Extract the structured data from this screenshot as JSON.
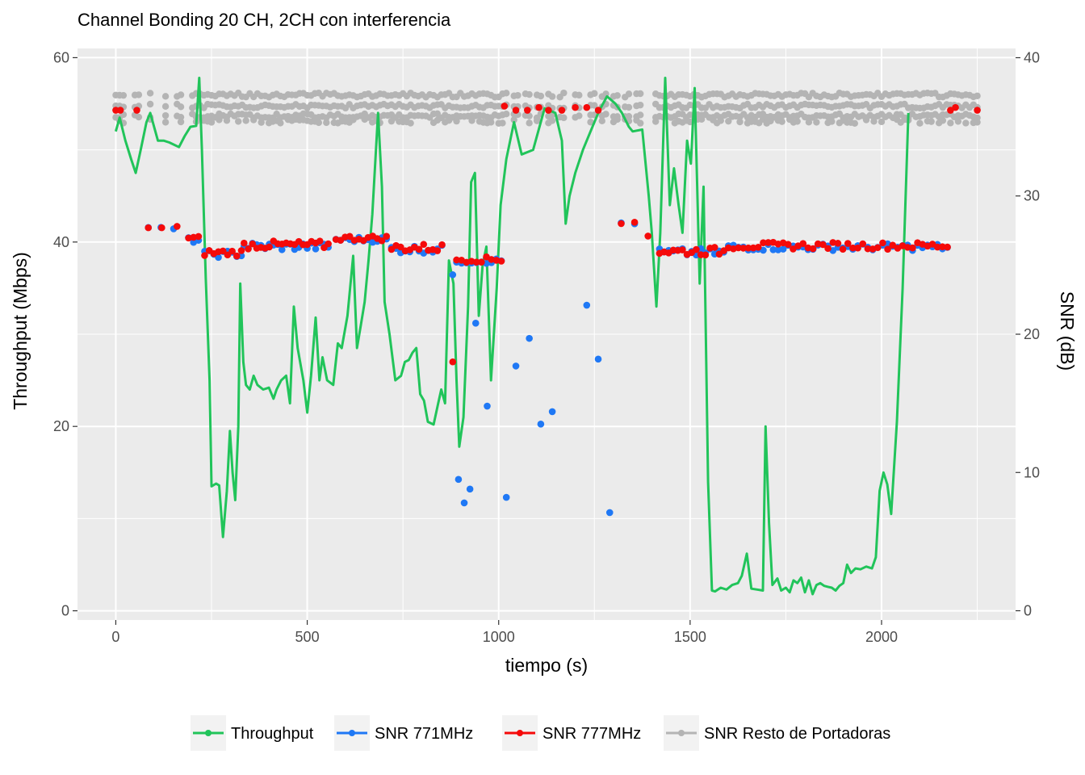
{
  "chart_data": {
    "type": "line",
    "title": "Channel Bonding 20 CH, 2CH con interferencia",
    "xlabel": "tiempo (s)",
    "ylabel": "Throughput (Mbps)",
    "y2label": "SNR (dB)",
    "xlim": [
      -100,
      2350
    ],
    "ylim": [
      -1,
      61
    ],
    "y2lim": [
      -0.67,
      40.67
    ],
    "x_ticks": [
      0,
      500,
      1000,
      1500,
      2000
    ],
    "y_ticks": [
      0,
      20,
      40,
      60
    ],
    "y2_ticks": [
      0,
      10,
      20,
      30,
      40
    ],
    "x_tick_labels": [
      "0",
      "500",
      "1000",
      "1500",
      "2000"
    ],
    "y_tick_labels": [
      "0",
      "20",
      "40",
      "60"
    ],
    "y2_tick_labels": [
      "0",
      "10",
      "20",
      "30",
      "40"
    ],
    "grid": true,
    "legend_position": "bottom",
    "colors": {
      "panel": "#ebebeb",
      "grid": "#ffffff",
      "throughput": "#21c45a",
      "snr771": "#1f78f5",
      "snr777": "#f50a0a",
      "snr_rest": "#b4b4b4"
    },
    "series": [
      {
        "name": "Throughput",
        "axis": "left",
        "kind": "line",
        "points": [
          [
            0,
            52
          ],
          [
            10,
            53.5
          ],
          [
            25,
            51
          ],
          [
            40,
            49
          ],
          [
            52,
            47.5
          ],
          [
            65,
            50
          ],
          [
            80,
            53
          ],
          [
            90,
            54
          ],
          [
            110,
            51
          ],
          [
            125,
            51
          ],
          [
            140,
            50.8
          ],
          [
            165,
            50.3
          ],
          [
            180,
            51.5
          ],
          [
            195,
            52.5
          ],
          [
            210,
            52.6
          ],
          [
            218,
            57.8
          ],
          [
            225,
            50
          ],
          [
            235,
            36
          ],
          [
            245,
            25
          ],
          [
            250,
            13.5
          ],
          [
            262,
            13.8
          ],
          [
            270,
            13.6
          ],
          [
            280,
            8
          ],
          [
            290,
            13
          ],
          [
            298,
            19.5
          ],
          [
            305,
            15
          ],
          [
            312,
            12
          ],
          [
            320,
            20
          ],
          [
            325,
            35.5
          ],
          [
            333,
            27
          ],
          [
            340,
            24.5
          ],
          [
            350,
            24
          ],
          [
            360,
            25.5
          ],
          [
            370,
            24.5
          ],
          [
            385,
            24
          ],
          [
            400,
            24.2
          ],
          [
            412,
            23
          ],
          [
            420,
            24
          ],
          [
            432,
            25
          ],
          [
            445,
            25.5
          ],
          [
            455,
            22.5
          ],
          [
            465,
            33
          ],
          [
            475,
            28.5
          ],
          [
            490,
            25
          ],
          [
            500,
            21.5
          ],
          [
            510,
            25.5
          ],
          [
            522,
            31.8
          ],
          [
            532,
            25
          ],
          [
            540,
            27.5
          ],
          [
            552,
            25
          ],
          [
            568,
            24.5
          ],
          [
            580,
            29
          ],
          [
            590,
            28.5
          ],
          [
            605,
            32
          ],
          [
            620,
            38.5
          ],
          [
            630,
            28.5
          ],
          [
            640,
            31
          ],
          [
            650,
            33.5
          ],
          [
            660,
            38
          ],
          [
            670,
            43
          ],
          [
            685,
            54
          ],
          [
            695,
            46
          ],
          [
            702,
            33.5
          ],
          [
            715,
            30
          ],
          [
            730,
            25
          ],
          [
            745,
            25.5
          ],
          [
            755,
            27
          ],
          [
            765,
            27.2
          ],
          [
            775,
            28
          ],
          [
            785,
            28.5
          ],
          [
            795,
            23.5
          ],
          [
            805,
            22.8
          ],
          [
            815,
            20.5
          ],
          [
            830,
            20.2
          ],
          [
            842,
            22.5
          ],
          [
            850,
            24
          ],
          [
            860,
            22.5
          ],
          [
            870,
            38
          ],
          [
            882,
            35.5
          ],
          [
            890,
            25
          ],
          [
            897,
            17.8
          ],
          [
            908,
            21
          ],
          [
            920,
            33
          ],
          [
            928,
            46.5
          ],
          [
            938,
            47.5
          ],
          [
            948,
            32
          ],
          [
            958,
            37.5
          ],
          [
            968,
            39.5
          ],
          [
            980,
            25
          ],
          [
            995,
            35
          ],
          [
            1005,
            44
          ],
          [
            1020,
            49
          ],
          [
            1040,
            53
          ],
          [
            1060,
            49.5
          ],
          [
            1090,
            50
          ],
          [
            1120,
            54.5
          ],
          [
            1148,
            54
          ],
          [
            1165,
            51
          ],
          [
            1175,
            42
          ],
          [
            1185,
            45
          ],
          [
            1200,
            47.5
          ],
          [
            1220,
            50
          ],
          [
            1240,
            52
          ],
          [
            1262,
            54.2
          ],
          [
            1283,
            55.8
          ],
          [
            1305,
            55
          ],
          [
            1322,
            54
          ],
          [
            1340,
            52.5
          ],
          [
            1350,
            52
          ],
          [
            1375,
            52.2
          ],
          [
            1392,
            45
          ],
          [
            1400,
            41
          ],
          [
            1412,
            33
          ],
          [
            1422,
            41
          ],
          [
            1435,
            57.8
          ],
          [
            1447,
            44
          ],
          [
            1458,
            48
          ],
          [
            1470,
            44
          ],
          [
            1480,
            41
          ],
          [
            1492,
            51
          ],
          [
            1502,
            48.5
          ],
          [
            1512,
            56.7
          ],
          [
            1525,
            35.5
          ],
          [
            1535,
            46
          ],
          [
            1547,
            14
          ],
          [
            1557,
            2.2
          ],
          [
            1565,
            2.1
          ],
          [
            1580,
            2.5
          ],
          [
            1595,
            2.3
          ],
          [
            1610,
            2.8
          ],
          [
            1625,
            3
          ],
          [
            1635,
            3.8
          ],
          [
            1648,
            6.2
          ],
          [
            1660,
            2.4
          ],
          [
            1675,
            2.3
          ],
          [
            1690,
            2.2
          ],
          [
            1697,
            20
          ],
          [
            1706,
            9.5
          ],
          [
            1715,
            2.8
          ],
          [
            1728,
            3.5
          ],
          [
            1738,
            2.2
          ],
          [
            1750,
            2.5
          ],
          [
            1760,
            2
          ],
          [
            1770,
            3.3
          ],
          [
            1780,
            3
          ],
          [
            1790,
            3.6
          ],
          [
            1800,
            2
          ],
          [
            1810,
            3.3
          ],
          [
            1820,
            1.8
          ],
          [
            1830,
            2.8
          ],
          [
            1840,
            3
          ],
          [
            1850,
            2.7
          ],
          [
            1860,
            2.6
          ],
          [
            1870,
            2.5
          ],
          [
            1880,
            2.2
          ],
          [
            1890,
            2.7
          ],
          [
            1900,
            3
          ],
          [
            1910,
            5
          ],
          [
            1920,
            4.1
          ],
          [
            1932,
            4.6
          ],
          [
            1945,
            4.5
          ],
          [
            1960,
            4.8
          ],
          [
            1975,
            4.6
          ],
          [
            1985,
            5.8
          ],
          [
            1995,
            13
          ],
          [
            2005,
            15
          ],
          [
            2015,
            13.7
          ],
          [
            2025,
            10.5
          ],
          [
            2040,
            20.5
          ],
          [
            2055,
            35
          ],
          [
            2070,
            54
          ]
        ]
      },
      {
        "name": "SNR 771MHz",
        "axis": "right",
        "kind": "points",
        "points": [
          [
            880,
            24.3
          ],
          [
            895,
            9.5
          ],
          [
            910,
            7.8
          ],
          [
            925,
            8.8
          ],
          [
            940,
            20.8
          ],
          [
            970,
            14.8
          ],
          [
            1020,
            8.2
          ],
          [
            1045,
            17.7
          ],
          [
            1080,
            19.7
          ],
          [
            1110,
            13.5
          ],
          [
            1140,
            14.4
          ],
          [
            1230,
            22.1
          ],
          [
            1260,
            18.2
          ],
          [
            1290,
            7.1
          ]
        ],
        "runs": [
          {
            "start": 85,
            "end": 160,
            "step": 33,
            "value": 27.6,
            "jitter": 0.2
          },
          {
            "start": 190,
            "end": 225,
            "step": 13,
            "value": 26.8,
            "jitter": 0.2
          },
          {
            "start": 232,
            "end": 330,
            "step": 12,
            "value": 25.8,
            "jitter": 0.25
          },
          {
            "start": 335,
            "end": 565,
            "step": 11,
            "value": 26.35,
            "jitter": 0.3
          },
          {
            "start": 575,
            "end": 715,
            "step": 12,
            "value": 26.85,
            "jitter": 0.2
          },
          {
            "start": 720,
            "end": 860,
            "step": 12,
            "value": 26.15,
            "jitter": 0.3
          },
          {
            "start": 890,
            "end": 1010,
            "step": 13,
            "value": 25.3,
            "jitter": 0.2
          },
          {
            "start": 1320,
            "end": 1360,
            "step": 35,
            "value": 28.05,
            "jitter": 0.1
          },
          {
            "start": 1420,
            "end": 1590,
            "step": 12,
            "value": 25.9,
            "jitter": 0.3
          },
          {
            "start": 1600,
            "end": 2180,
            "step": 13,
            "value": 26.3,
            "jitter": 0.25
          }
        ]
      },
      {
        "name": "SNR 777MHz",
        "axis": "right",
        "kind": "points",
        "points": [
          [
            0,
            36.2
          ],
          [
            12,
            36.2
          ],
          [
            55,
            36.2
          ],
          [
            85,
            27.7
          ],
          [
            120,
            27.7
          ],
          [
            160,
            27.8
          ],
          [
            880,
            18
          ],
          [
            1015,
            36.5
          ],
          [
            1045,
            36.2
          ],
          [
            1075,
            36.2
          ],
          [
            1105,
            36.4
          ],
          [
            1130,
            36.2
          ],
          [
            1165,
            36.2
          ],
          [
            1200,
            36.4
          ],
          [
            1230,
            36.4
          ],
          [
            1260,
            36.2
          ],
          [
            1320,
            28
          ],
          [
            1355,
            28.1
          ],
          [
            1390,
            27.1
          ],
          [
            2180,
            36.2
          ],
          [
            2193,
            36.4
          ],
          [
            2250,
            36.2
          ]
        ],
        "runs": [
          {
            "start": 190,
            "end": 225,
            "step": 13,
            "value": 26.9,
            "jitter": 0.2
          },
          {
            "start": 232,
            "end": 330,
            "step": 12,
            "value": 25.9,
            "jitter": 0.25
          },
          {
            "start": 335,
            "end": 565,
            "step": 11,
            "value": 26.45,
            "jitter": 0.3
          },
          {
            "start": 575,
            "end": 715,
            "step": 12,
            "value": 26.95,
            "jitter": 0.2
          },
          {
            "start": 720,
            "end": 860,
            "step": 12,
            "value": 26.25,
            "jitter": 0.3
          },
          {
            "start": 890,
            "end": 1010,
            "step": 13,
            "value": 25.4,
            "jitter": 0.2
          },
          {
            "start": 1420,
            "end": 1590,
            "step": 12,
            "value": 26.0,
            "jitter": 0.3
          },
          {
            "start": 1600,
            "end": 2180,
            "step": 13,
            "value": 26.4,
            "jitter": 0.25
          }
        ]
      },
      {
        "name": "SNR Resto de Portadoras",
        "axis": "right",
        "kind": "points",
        "bands": [
          37.3,
          36.5,
          35.8,
          35.4
        ],
        "x_gaps": [
          [
            25,
            50
          ],
          [
            60,
            85
          ],
          [
            95,
            125
          ],
          [
            135,
            160
          ],
          [
            170,
            200
          ],
          [
            1020,
            1040
          ],
          [
            1050,
            1070
          ],
          [
            1080,
            1100
          ],
          [
            1110,
            1130
          ],
          [
            1140,
            1160
          ],
          [
            1170,
            1200
          ],
          [
            1210,
            1240
          ],
          [
            1250,
            1270
          ],
          [
            1280,
            1300
          ],
          [
            1310,
            1330
          ],
          [
            1340,
            1360
          ],
          [
            1370,
            1410
          ]
        ],
        "x_start": 0,
        "x_end": 2250,
        "step": 10
      }
    ]
  }
}
